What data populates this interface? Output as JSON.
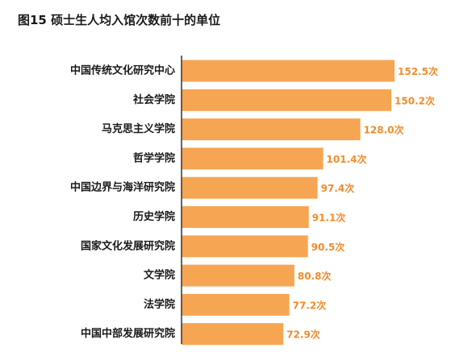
{
  "figure_title": "图15 硕士生人均入馆次数前十的单位",
  "chart_data": {
    "type": "bar",
    "orientation": "horizontal",
    "title": "图15 硕士生人均入馆次数前十的单位",
    "categories": [
      "中国传统文化研究中心",
      "社会学院",
      "马克思主义学院",
      "哲学学院",
      "中国边界与海洋研究院",
      "历史学院",
      "国家文化发展研究院",
      "文学院",
      "法学院",
      "中国中部发展研究院"
    ],
    "values": [
      152.5,
      150.2,
      128.0,
      101.4,
      97.4,
      91.1,
      90.5,
      80.8,
      77.2,
      72.9
    ],
    "value_labels": [
      "152.5次",
      "150.2次",
      "128.0次",
      "101.4次",
      "97.4次",
      "91.1次",
      "90.5次",
      "80.8次",
      "77.2次",
      "72.9次"
    ],
    "xlim": [
      0,
      152.5
    ],
    "bar_color": "#F6A553",
    "label_color": "#F08C2B",
    "axis_color": "#333333",
    "grid": false,
    "legend": "none"
  }
}
